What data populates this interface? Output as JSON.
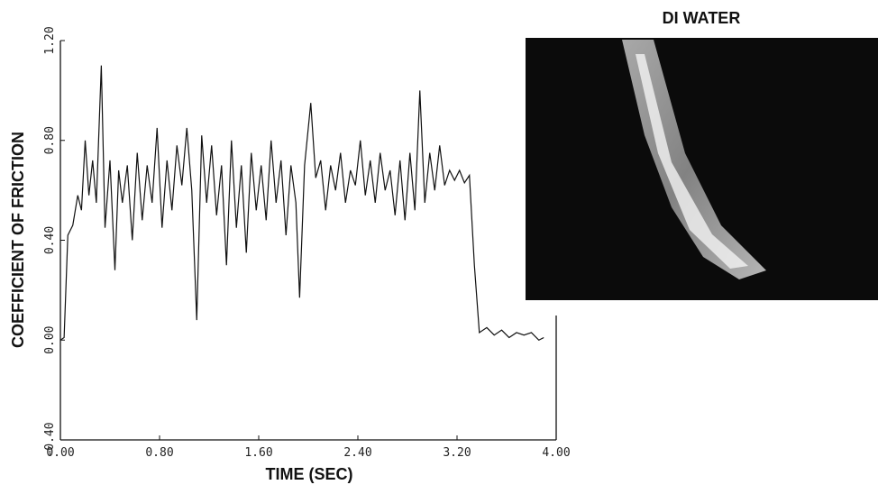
{
  "chart_data": {
    "type": "line",
    "title": "DI WATER",
    "x_label": "TIME (SEC)",
    "y_label": "COEFFICIENT OF FRICTION",
    "color": "#111111",
    "xlim": [
      0,
      4
    ],
    "ylim": [
      -0.4,
      1.2
    ],
    "xticks": [
      {
        "value": 0,
        "label": "0.00"
      },
      {
        "value": 0.8,
        "label": "0.80"
      },
      {
        "value": 1.6,
        "label": "1.60"
      },
      {
        "value": 2.4,
        "label": "2.40"
      },
      {
        "value": 3.2,
        "label": "3.20"
      },
      {
        "value": 4,
        "label": "4.00"
      }
    ],
    "yticks": [
      {
        "value": -0.4,
        "label": "-0.40"
      },
      {
        "value": 0,
        "label": "0.00"
      },
      {
        "value": 0.4,
        "label": "0.40"
      },
      {
        "value": 0.8,
        "label": "0.80"
      },
      {
        "value": 1.2,
        "label": "1.20"
      }
    ],
    "x": [
      0,
      0.03,
      0.06,
      0.1,
      0.14,
      0.17,
      0.2,
      0.23,
      0.26,
      0.29,
      0.33,
      0.36,
      0.4,
      0.44,
      0.47,
      0.5,
      0.54,
      0.58,
      0.62,
      0.66,
      0.7,
      0.74,
      0.78,
      0.82,
      0.86,
      0.9,
      0.94,
      0.98,
      1.02,
      1.06,
      1.1,
      1.14,
      1.18,
      1.22,
      1.26,
      1.3,
      1.34,
      1.38,
      1.42,
      1.46,
      1.5,
      1.54,
      1.58,
      1.62,
      1.66,
      1.7,
      1.74,
      1.78,
      1.82,
      1.86,
      1.9,
      1.93,
      1.97,
      2.02,
      2.06,
      2.1,
      2.14,
      2.18,
      2.22,
      2.26,
      2.3,
      2.34,
      2.38,
      2.42,
      2.46,
      2.5,
      2.54,
      2.58,
      2.62,
      2.66,
      2.7,
      2.74,
      2.78,
      2.82,
      2.86,
      2.9,
      2.94,
      2.98,
      3.02,
      3.06,
      3.1,
      3.14,
      3.18,
      3.22,
      3.26,
      3.3,
      3.34,
      3.38,
      3.44,
      3.5,
      3.56,
      3.62,
      3.68,
      3.74,
      3.8,
      3.86,
      3.9
    ],
    "values": [
      0.0,
      0.01,
      0.42,
      0.46,
      0.58,
      0.52,
      0.8,
      0.58,
      0.72,
      0.55,
      1.1,
      0.45,
      0.72,
      0.28,
      0.68,
      0.55,
      0.7,
      0.4,
      0.75,
      0.48,
      0.7,
      0.55,
      0.85,
      0.45,
      0.72,
      0.52,
      0.78,
      0.62,
      0.85,
      0.6,
      0.08,
      0.82,
      0.55,
      0.78,
      0.5,
      0.7,
      0.3,
      0.8,
      0.45,
      0.7,
      0.35,
      0.75,
      0.52,
      0.7,
      0.48,
      0.8,
      0.55,
      0.72,
      0.42,
      0.7,
      0.55,
      0.17,
      0.7,
      0.95,
      0.65,
      0.72,
      0.52,
      0.7,
      0.6,
      0.75,
      0.55,
      0.68,
      0.62,
      0.8,
      0.58,
      0.72,
      0.55,
      0.75,
      0.6,
      0.68,
      0.5,
      0.72,
      0.48,
      0.75,
      0.52,
      1.0,
      0.55,
      0.75,
      0.6,
      0.78,
      0.62,
      0.68,
      0.64,
      0.68,
      0.63,
      0.66,
      0.3,
      0.03,
      0.05,
      0.02,
      0.04,
      0.01,
      0.03,
      0.02,
      0.03,
      0.0,
      0.01
    ]
  }
}
